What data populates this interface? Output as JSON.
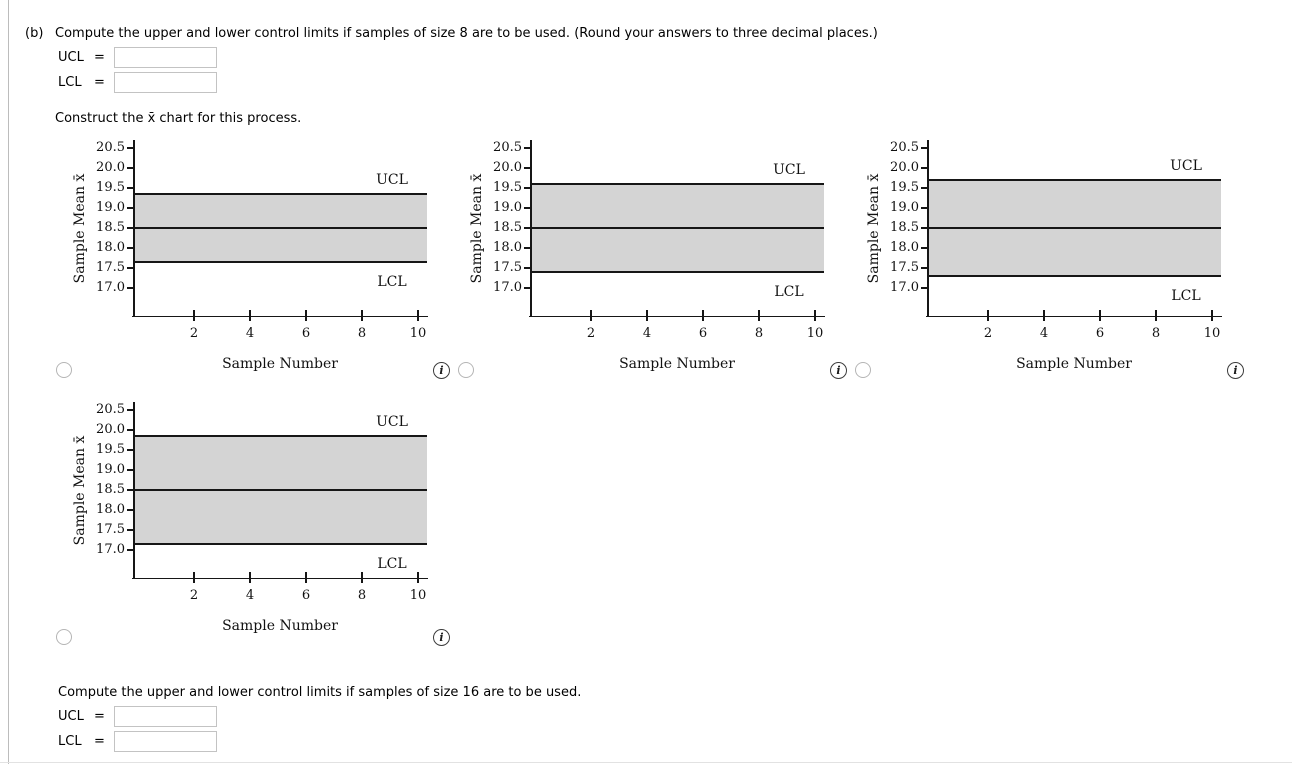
{
  "part_b": {
    "label": "(b)",
    "instruction": "Compute the upper and lower control limits if samples of size 8 are to be used. (Round your answers to three decimal places.)",
    "construct_text": "Construct the x̄ chart for this process.",
    "fields": [
      {
        "label": "UCL",
        "eq": "=",
        "value": ""
      },
      {
        "label": "LCL",
        "eq": "=",
        "value": ""
      }
    ]
  },
  "part_c": {
    "instruction": "Compute the upper and lower control limits if samples of size 16 are to be used.",
    "fields": [
      {
        "label": "UCL",
        "eq": "=",
        "value": ""
      },
      {
        "label": "LCL",
        "eq": "=",
        "value": ""
      }
    ]
  },
  "icons": {
    "info_glyph": "i",
    "radio_glyph": ""
  },
  "chart_data": [
    {
      "type": "line",
      "subtype": "xbar-control-chart",
      "option_index": 1,
      "selected": false,
      "xlabel": "Sample Number",
      "ylabel": "Sample Mean x̄",
      "yticks": [
        "20.5",
        "20.0",
        "19.5",
        "19.0",
        "18.5",
        "18.0",
        "17.5",
        "17.0"
      ],
      "xticks": [
        2,
        4,
        6,
        8,
        10
      ],
      "ylim": [
        16.6,
        20.7
      ],
      "xlim": [
        0,
        10.5
      ],
      "center_line": 18.5,
      "ucl": 19.35,
      "lcl": 17.65,
      "ucl_label": "UCL",
      "lcl_label": "LCL",
      "band_fill": "#d4d4d4",
      "line_color": "#161616"
    },
    {
      "type": "line",
      "subtype": "xbar-control-chart",
      "option_index": 2,
      "selected": false,
      "xlabel": "Sample Number",
      "ylabel": "Sample Mean x̄",
      "yticks": [
        "20.5",
        "20.0",
        "19.5",
        "19.0",
        "18.5",
        "18.0",
        "17.5",
        "17.0"
      ],
      "xticks": [
        2,
        4,
        6,
        8,
        10
      ],
      "ylim": [
        16.6,
        20.7
      ],
      "xlim": [
        0,
        10.5
      ],
      "center_line": 18.5,
      "ucl": 19.6,
      "lcl": 17.4,
      "ucl_label": "UCL",
      "lcl_label": "LCL",
      "band_fill": "#d4d4d4",
      "line_color": "#161616"
    },
    {
      "type": "line",
      "subtype": "xbar-control-chart",
      "option_index": 3,
      "selected": false,
      "xlabel": "Sample Number",
      "ylabel": "Sample Mean x̄",
      "yticks": [
        "20.5",
        "20.0",
        "19.5",
        "19.0",
        "18.5",
        "18.0",
        "17.5",
        "17.0"
      ],
      "xticks": [
        2,
        4,
        6,
        8,
        10
      ],
      "ylim": [
        16.6,
        20.7
      ],
      "xlim": [
        0,
        10.5
      ],
      "center_line": 18.5,
      "ucl": 19.7,
      "lcl": 17.3,
      "ucl_label": "UCL",
      "lcl_label": "LCL",
      "band_fill": "#d4d4d4",
      "line_color": "#161616"
    },
    {
      "type": "line",
      "subtype": "xbar-control-chart",
      "option_index": 4,
      "selected": false,
      "xlabel": "Sample Number",
      "ylabel": "Sample Mean x̄",
      "yticks": [
        "20.5",
        "20.0",
        "19.5",
        "19.0",
        "18.5",
        "18.0",
        "17.5",
        "17.0"
      ],
      "xticks": [
        2,
        4,
        6,
        8,
        10
      ],
      "ylim": [
        16.6,
        20.7
      ],
      "xlim": [
        0,
        10.5
      ],
      "center_line": 18.5,
      "ucl": 19.85,
      "lcl": 17.15,
      "ucl_label": "UCL",
      "lcl_label": "LCL",
      "band_fill": "#d4d4d4",
      "line_color": "#161616"
    }
  ]
}
